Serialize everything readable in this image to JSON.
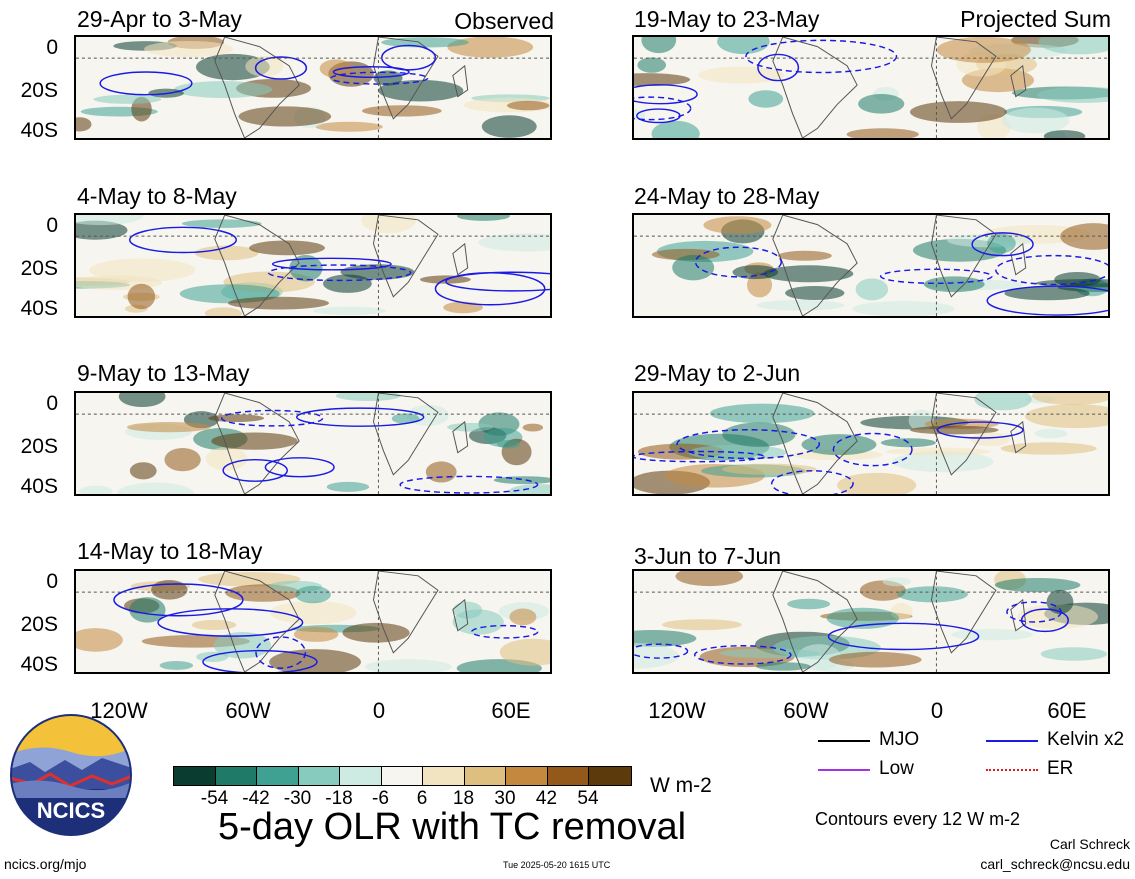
{
  "panels_left": [
    {
      "title": "29-Apr to 3-May",
      "tag": "Observed"
    },
    {
      "title": "4-May to 8-May",
      "tag": ""
    },
    {
      "title": "9-May to 13-May",
      "tag": ""
    },
    {
      "title": "14-May to 18-May",
      "tag": ""
    }
  ],
  "panels_right": [
    {
      "title": "19-May to 23-May",
      "tag": "Projected Sum"
    },
    {
      "title": "24-May to 28-May",
      "tag": ""
    },
    {
      "title": "29-May to 2-Jun",
      "tag": ""
    },
    {
      "title": "3-Jun to 7-Jun",
      "tag": ""
    }
  ],
  "y_labels": [
    "0",
    "20S",
    "40S"
  ],
  "x_labels": [
    "120W",
    "60W",
    "0",
    "60E"
  ],
  "colorbar": {
    "colors": [
      "#0a3d30",
      "#1f7a68",
      "#3ea192",
      "#86cbbd",
      "#cdebe3",
      "#f7f5ef",
      "#f2e4c0",
      "#dfbf80",
      "#c4893f",
      "#93591a",
      "#5c3a0c"
    ],
    "labels": [
      "-54",
      "-42",
      "-30",
      "-18",
      "-6",
      "6",
      "18",
      "30",
      "42",
      "54"
    ],
    "units": "W m-2"
  },
  "main_title": "5-day OLR with TC removal",
  "legend": [
    {
      "label": "MJO",
      "color": "#000000"
    },
    {
      "label": "Kelvin x2",
      "color": "#1a1ae6"
    },
    {
      "label": "Low",
      "color": "#a333e0"
    },
    {
      "label": "ER",
      "color": "#e01a1a"
    }
  ],
  "contour_note": "Contours every 12 W m-2",
  "author": "Carl Schreck",
  "email": "carl_schreck@ncsu.edu",
  "site": "ncics.org/mjo",
  "timestamp": "Tue 2025-05-20 1615 UTC",
  "logo_text": "NCICS"
}
